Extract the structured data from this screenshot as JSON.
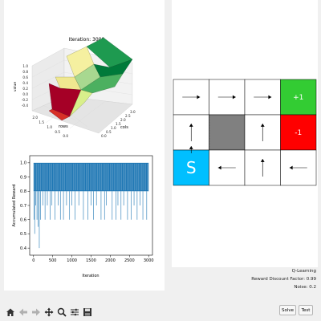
{
  "surface_plot": {
    "title": "Iteration: 3000",
    "xlabel": "cols",
    "ylabel": "rows",
    "zlabel": "value",
    "x_ticks": [
      "0.0",
      "0.5",
      "1.0",
      "1.5",
      "2.0",
      "2.5",
      "3.0"
    ],
    "y_ticks": [
      "0.0",
      "0.5",
      "1.0",
      "1.5",
      "2.0"
    ],
    "z_ticks": [
      "1.0",
      "0.8",
      "0.6",
      "0.4",
      "0.2",
      "0.0",
      "-0.2",
      "-0.4"
    ]
  },
  "chart_data": {
    "type": "line",
    "title": "",
    "xlabel": "Iteration",
    "ylabel": "Accumulated Reward",
    "xlim": [
      -100,
      3100
    ],
    "ylim": [
      0.35,
      1.05
    ],
    "x_ticks": [
      "0",
      "500",
      "1000",
      "1500",
      "2000",
      "2500",
      "3000"
    ],
    "y_ticks": [
      "0.4",
      "0.5",
      "0.6",
      "0.7",
      "0.8",
      "0.9",
      "1.0"
    ],
    "y_tick_values": [
      0.4,
      0.5,
      0.6,
      0.7,
      0.8,
      0.9,
      1.0
    ],
    "x_tick_values": [
      0,
      500,
      1000,
      1500,
      2000,
      2500,
      3000
    ],
    "series_color": "#1f77b4",
    "band": {
      "x_start": 0,
      "x_end": 3000,
      "high": 1.0,
      "low": 0.8
    },
    "drops": [
      [
        10,
        0.6
      ],
      [
        30,
        0.5
      ],
      [
        55,
        0.7
      ],
      [
        90,
        0.6
      ],
      [
        120,
        0.55
      ],
      [
        150,
        0.4
      ],
      [
        180,
        0.6
      ],
      [
        240,
        0.7
      ],
      [
        300,
        0.6
      ],
      [
        360,
        0.7
      ],
      [
        430,
        0.6
      ],
      [
        480,
        0.7
      ],
      [
        560,
        0.6
      ],
      [
        640,
        0.7
      ],
      [
        700,
        0.6
      ],
      [
        780,
        0.6
      ],
      [
        860,
        0.7
      ],
      [
        940,
        0.6
      ],
      [
        1000,
        0.7
      ],
      [
        1080,
        0.6
      ],
      [
        1180,
        0.7
      ],
      [
        1300,
        0.6
      ],
      [
        1420,
        0.6
      ],
      [
        1500,
        0.7
      ],
      [
        1560,
        0.6
      ],
      [
        1640,
        0.7
      ],
      [
        1760,
        0.6
      ],
      [
        1850,
        0.6
      ],
      [
        1900,
        0.7
      ],
      [
        2050,
        0.6
      ],
      [
        2150,
        0.6
      ],
      [
        2200,
        0.7
      ],
      [
        2280,
        0.6
      ],
      [
        2350,
        0.7
      ],
      [
        2450,
        0.6
      ],
      [
        2550,
        0.6
      ],
      [
        2620,
        0.7
      ],
      [
        2700,
        0.6
      ],
      [
        2780,
        0.7
      ],
      [
        2850,
        0.6
      ],
      [
        2950,
        0.6
      ]
    ]
  },
  "grid": {
    "cells": [
      [
        {
          "type": "empty",
          "arrow": "right"
        },
        {
          "type": "empty",
          "arrow": "right"
        },
        {
          "type": "empty",
          "arrow": "right"
        },
        {
          "type": "goal",
          "label": "+1"
        }
      ],
      [
        {
          "type": "empty",
          "arrow": "up"
        },
        {
          "type": "wall"
        },
        {
          "type": "empty",
          "arrow": "up"
        },
        {
          "type": "pit",
          "label": "-1"
        }
      ],
      [
        {
          "type": "start",
          "label": "S",
          "arrow": "up"
        },
        {
          "type": "empty",
          "arrow": "left"
        },
        {
          "type": "empty",
          "arrow": "up"
        },
        {
          "type": "empty",
          "arrow": "left"
        }
      ]
    ],
    "colors": {
      "goal": "#33cc33",
      "pit": "#ff0000",
      "start": "#00bfff",
      "wall": "#808080",
      "empty": "#ffffff"
    }
  },
  "info": {
    "algorithm": "Q-Learning",
    "discount": "Reward Discount Factor: 0.99",
    "noise": "Noise: 0.2"
  },
  "toolbar": {
    "icons": [
      "home-icon",
      "back-arrow-icon",
      "forward-arrow-icon",
      "pan-icon",
      "zoom-icon",
      "configure-icon",
      "save-icon"
    ]
  },
  "buttons": {
    "solve": "Solve",
    "test": "Test"
  }
}
